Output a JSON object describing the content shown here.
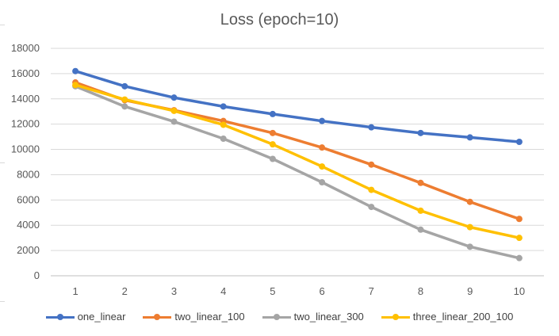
{
  "chart_data": {
    "type": "line",
    "title": "Loss (epoch=10)",
    "xlabel": "",
    "ylabel": "",
    "x": [
      1,
      2,
      3,
      4,
      5,
      6,
      7,
      8,
      9,
      10
    ],
    "ylim": [
      0,
      18000
    ],
    "yticks": [
      0,
      2000,
      4000,
      6000,
      8000,
      10000,
      12000,
      14000,
      16000,
      18000
    ],
    "grid": true,
    "legend_position": "bottom",
    "series": [
      {
        "name": "one_linear",
        "color": "#4472C4",
        "values": [
          16200,
          15000,
          14100,
          13400,
          12800,
          12250,
          11750,
          11300,
          10950,
          10600
        ]
      },
      {
        "name": "two_linear_100",
        "color": "#ED7D31",
        "values": [
          15300,
          13900,
          13100,
          12250,
          11300,
          10150,
          8800,
          7350,
          5850,
          4500
        ]
      },
      {
        "name": "two_linear_300",
        "color": "#A5A5A5",
        "values": [
          15000,
          13400,
          12200,
          10850,
          9250,
          7400,
          5450,
          3650,
          2300,
          1400
        ]
      },
      {
        "name": "three_linear_200_100",
        "color": "#FFC000",
        "values": [
          15100,
          13950,
          13050,
          11950,
          10400,
          8650,
          6800,
          5150,
          3850,
          3000
        ]
      }
    ]
  }
}
